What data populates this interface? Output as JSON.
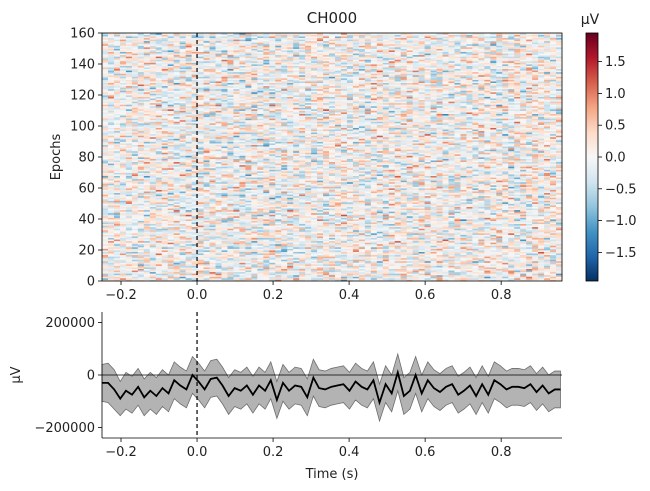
{
  "chart_data": [
    {
      "type": "heatmap",
      "title": "CH000",
      "xlabel": "",
      "ylabel": "Epochs",
      "xlim": [
        -0.25,
        0.96
      ],
      "ylim": [
        0,
        160
      ],
      "xticks": [
        -0.2,
        0.0,
        0.2,
        0.4,
        0.6,
        0.8
      ],
      "xtick_labels": [
        "−0.2",
        "0.0",
        "0.2",
        "0.4",
        "0.6",
        "0.8"
      ],
      "yticks": [
        0,
        20,
        40,
        60,
        80,
        100,
        120,
        140,
        160
      ],
      "ytick_labels": [
        "0",
        "20",
        "40",
        "60",
        "80",
        "100",
        "120",
        "140",
        "160"
      ],
      "n_epochs": 160,
      "n_times": 77,
      "event_time": 0.0,
      "colormap": "RdBu_r",
      "colorbar": {
        "title": "µV",
        "range": [
          -1.95,
          1.95
        ],
        "ticks": [
          -1.5,
          -1.0,
          -0.5,
          0.0,
          0.5,
          1.0,
          1.5
        ],
        "tick_labels": [
          "−1.5",
          "−1.0",
          "−0.5",
          "0.0",
          "0.5",
          "1.0",
          "1.5"
        ]
      }
    },
    {
      "type": "line",
      "title": "",
      "xlabel": "Time (s)",
      "ylabel": "µV",
      "xlim": [
        -0.25,
        0.96
      ],
      "ylim": [
        -240000,
        240000
      ],
      "xticks": [
        -0.2,
        0.0,
        0.2,
        0.4,
        0.6,
        0.8
      ],
      "xtick_labels": [
        "−0.2",
        "0.0",
        "0.2",
        "0.4",
        "0.6",
        "0.8"
      ],
      "yticks": [
        -200000,
        0,
        200000
      ],
      "ytick_labels": [
        "−200000",
        "0",
        "200000"
      ],
      "event_time": 0.0,
      "x": [
        -0.25,
        -0.234,
        -0.218,
        -0.202,
        -0.187,
        -0.171,
        -0.155,
        -0.139,
        -0.123,
        -0.107,
        -0.091,
        -0.075,
        -0.06,
        -0.044,
        -0.028,
        -0.012,
        0.004,
        0.02,
        0.036,
        0.052,
        0.067,
        0.083,
        0.099,
        0.115,
        0.131,
        0.147,
        0.163,
        0.179,
        0.194,
        0.21,
        0.226,
        0.242,
        0.258,
        0.274,
        0.29,
        0.306,
        0.321,
        0.337,
        0.353,
        0.369,
        0.385,
        0.401,
        0.417,
        0.433,
        0.448,
        0.464,
        0.48,
        0.496,
        0.512,
        0.528,
        0.544,
        0.56,
        0.575,
        0.591,
        0.607,
        0.623,
        0.639,
        0.655,
        0.671,
        0.687,
        0.702,
        0.718,
        0.734,
        0.75,
        0.766,
        0.782,
        0.798,
        0.814,
        0.829,
        0.845,
        0.861,
        0.877,
        0.893,
        0.909,
        0.925,
        0.941,
        0.956
      ],
      "series": [
        {
          "name": "mean",
          "values": [
            -30000,
            -30000,
            -55000,
            -90000,
            -60000,
            -75000,
            -45000,
            -85000,
            -60000,
            -80000,
            -50000,
            -70000,
            -20000,
            -40000,
            -55000,
            0,
            -25000,
            -55000,
            -15000,
            -10000,
            -40000,
            -80000,
            -50000,
            -60000,
            -40000,
            -75000,
            -40000,
            -60000,
            -20000,
            -95000,
            -30000,
            -60000,
            -40000,
            -45000,
            -85000,
            -10000,
            -50000,
            -55000,
            -45000,
            -40000,
            -35000,
            -60000,
            -25000,
            -45000,
            -55000,
            -20000,
            -105000,
            -35000,
            -70000,
            10000,
            -80000,
            -60000,
            0,
            -70000,
            -20000,
            -50000,
            -65000,
            -45000,
            -35000,
            -75000,
            -60000,
            -40000,
            -80000,
            -35000,
            -75000,
            -20000,
            -35000,
            -55000,
            -45000,
            -45000,
            -50000,
            -35000,
            -65000,
            -40000,
            -70000,
            -55000,
            -55000
          ]
        },
        {
          "name": "ci_upper",
          "values": [
            40000,
            45000,
            20000,
            -25000,
            10000,
            -5000,
            25000,
            -15000,
            10000,
            -10000,
            20000,
            0,
            50000,
            30000,
            15000,
            70000,
            45000,
            15000,
            55000,
            60000,
            30000,
            -10000,
            20000,
            10000,
            30000,
            -5000,
            30000,
            10000,
            50000,
            -25000,
            40000,
            10000,
            30000,
            25000,
            -15000,
            60000,
            20000,
            15000,
            25000,
            30000,
            35000,
            10000,
            45000,
            25000,
            15000,
            50000,
            -35000,
            35000,
            0,
            80000,
            -10000,
            10000,
            70000,
            0,
            50000,
            20000,
            5000,
            25000,
            35000,
            -5000,
            10000,
            30000,
            -10000,
            35000,
            -5000,
            50000,
            35000,
            15000,
            25000,
            25000,
            20000,
            35000,
            5000,
            30000,
            0,
            15000,
            15000
          ]
        },
        {
          "name": "ci_lower",
          "values": [
            -100000,
            -105000,
            -130000,
            -155000,
            -130000,
            -145000,
            -115000,
            -155000,
            -130000,
            -150000,
            -120000,
            -140000,
            -90000,
            -110000,
            -125000,
            -70000,
            -95000,
            -125000,
            -85000,
            -80000,
            -110000,
            -150000,
            -120000,
            -130000,
            -110000,
            -145000,
            -110000,
            -130000,
            -90000,
            -165000,
            -100000,
            -130000,
            -110000,
            -115000,
            -155000,
            -80000,
            -120000,
            -125000,
            -115000,
            -110000,
            -105000,
            -130000,
            -95000,
            -115000,
            -125000,
            -90000,
            -175000,
            -105000,
            -140000,
            -60000,
            -150000,
            -130000,
            -70000,
            -140000,
            -90000,
            -120000,
            -135000,
            -115000,
            -105000,
            -145000,
            -130000,
            -110000,
            -150000,
            -105000,
            -145000,
            -90000,
            -105000,
            -125000,
            -115000,
            -115000,
            -120000,
            -105000,
            -135000,
            -110000,
            -140000,
            -125000,
            -125000
          ]
        }
      ]
    }
  ]
}
